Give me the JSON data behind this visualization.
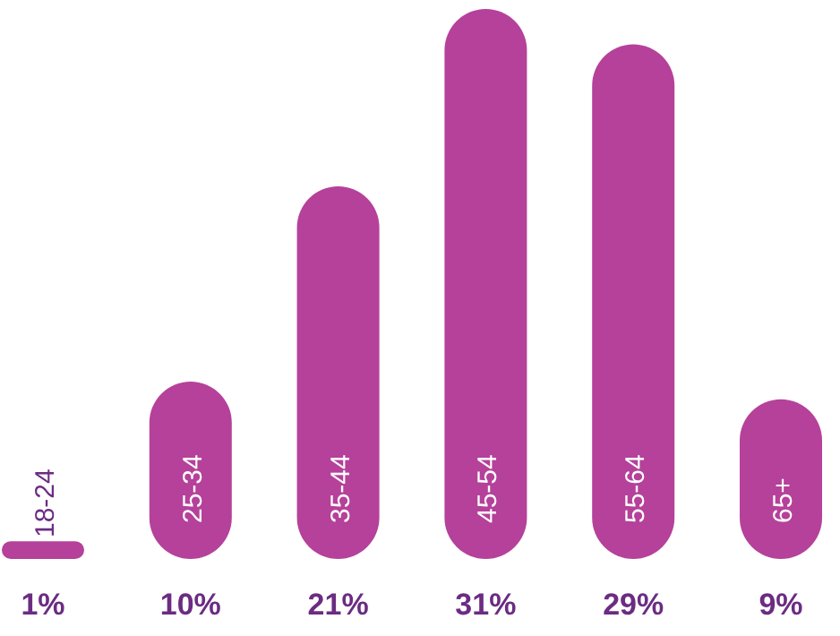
{
  "chart_data": {
    "type": "bar",
    "categories": [
      "18-24",
      "25-34",
      "35-44",
      "45-54",
      "55-64",
      "65+"
    ],
    "values": [
      1,
      10,
      21,
      31,
      29,
      9
    ],
    "value_labels": [
      "1%",
      "10%",
      "21%",
      "31%",
      "29%",
      "9%"
    ],
    "color": "#b5419a"
  }
}
